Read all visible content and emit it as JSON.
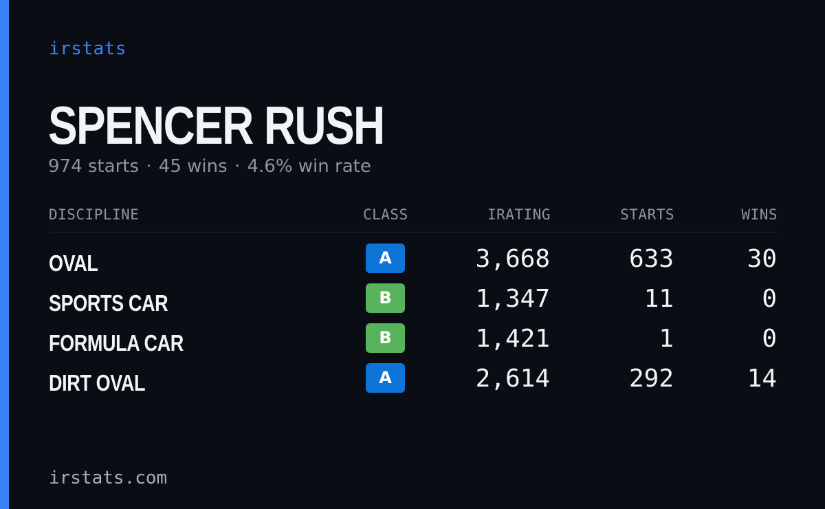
{
  "brand": "irstats",
  "driver": {
    "name": "SPENCER RUSH",
    "starts_text": "974 starts",
    "wins_text": "45 wins",
    "winrate_text": "4.6% win rate",
    "separator": "·"
  },
  "table": {
    "headers": {
      "discipline": "DISCIPLINE",
      "class": "CLASS",
      "irating": "IRATING",
      "starts": "STARTS",
      "wins": "WINS"
    },
    "rows": [
      {
        "discipline": "OVAL",
        "class": "A",
        "class_color": "#0f74d8",
        "irating": "3,668",
        "starts": "633",
        "wins": "30"
      },
      {
        "discipline": "SPORTS CAR",
        "class": "B",
        "class_color": "#58b35c",
        "irating": "1,347",
        "starts": "11",
        "wins": "0"
      },
      {
        "discipline": "FORMULA CAR",
        "class": "B",
        "class_color": "#58b35c",
        "irating": "1,421",
        "starts": "1",
        "wins": "0"
      },
      {
        "discipline": "DIRT OVAL",
        "class": "A",
        "class_color": "#0f74d8",
        "irating": "2,614",
        "starts": "292",
        "wins": "14"
      }
    ]
  },
  "footer": "irstats.com",
  "colors": {
    "accent": "#3b82f6",
    "background": "#0a0d14",
    "class_a": "#0f74d8",
    "class_b": "#58b35c"
  }
}
